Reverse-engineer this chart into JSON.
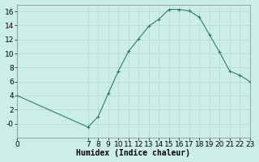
{
  "x": [
    0,
    7,
    8,
    9,
    10,
    11,
    12,
    13,
    14,
    15,
    16,
    17,
    18,
    19,
    20,
    21,
    22,
    23
  ],
  "y": [
    4,
    -0.5,
    1,
    4.3,
    7.5,
    10.3,
    12.1,
    13.9,
    14.9,
    16.3,
    16.3,
    16.1,
    15.2,
    12.7,
    10.2,
    7.5,
    6.9,
    6.0
  ],
  "line_color": "#2e7d6e",
  "marker": "+",
  "background_color": "#cceee8",
  "grid_color": "#c0d8d4",
  "xlabel": "Humidex (Indice chaleur)",
  "xlim": [
    0,
    23
  ],
  "ylim": [
    -2,
    17
  ],
  "yticks": [
    0,
    2,
    4,
    6,
    8,
    10,
    12,
    14,
    16
  ],
  "ytick_labels": [
    "-0",
    "2",
    "4",
    "6",
    "8",
    "10",
    "12",
    "14",
    "16"
  ],
  "xlabel_fontsize": 7,
  "tick_fontsize": 6.5
}
